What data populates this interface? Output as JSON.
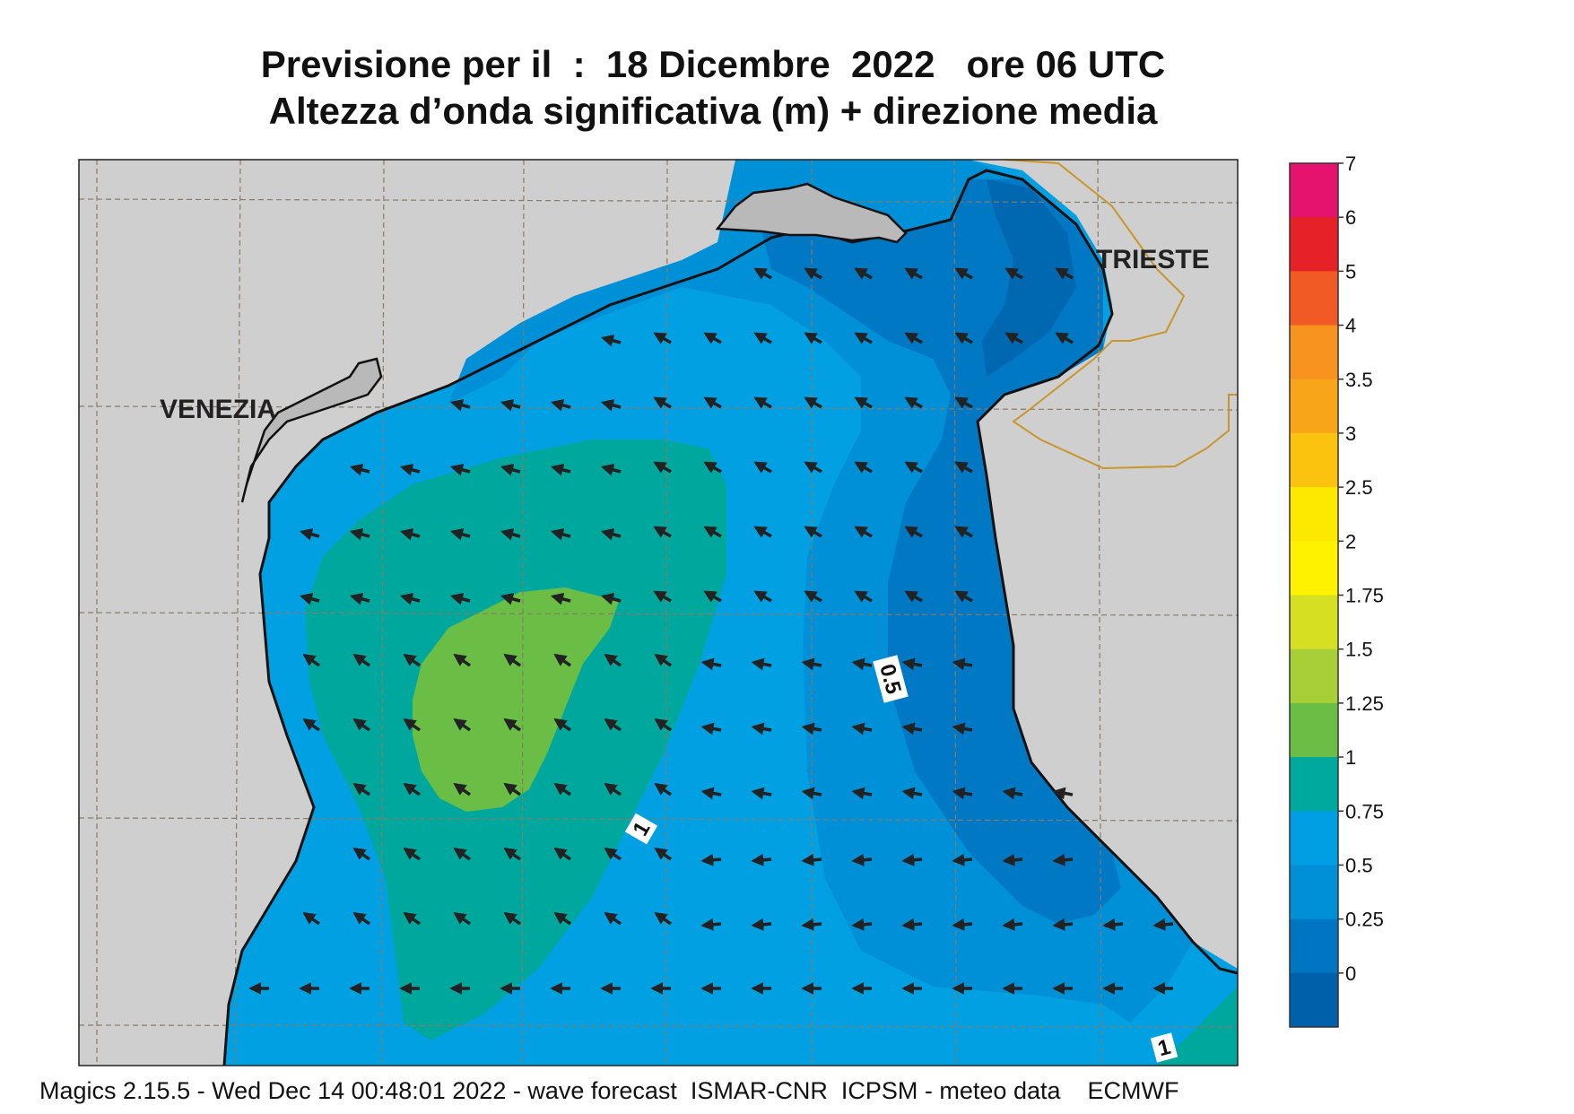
{
  "header": {
    "title_line1": "Previsione per il  :  18 Dicembre  2022   ore 06 UTC",
    "title_line2": "Altezza d’onda significativa (m) + direzione media"
  },
  "map": {
    "cities": [
      "VENEZIA",
      "TRIESTE"
    ],
    "contour_labels": [
      "0.5",
      "1",
      "1"
    ]
  },
  "legend": {
    "ticks": [
      "7",
      "6",
      "5",
      "4",
      "3.5",
      "3",
      "2.5",
      "2",
      "1.75",
      "1.5",
      "1.25",
      "1",
      "0.75",
      "0.5",
      "0.25",
      "0"
    ],
    "colors": [
      "#e6136e",
      "#e62128",
      "#f15a24",
      "#f7931e",
      "#f9a51a",
      "#fbc20e",
      "#fde800",
      "#fff200",
      "#d7df23",
      "#a8cf38",
      "#6abd45",
      "#00a99d",
      "#009fe3",
      "#0090d8",
      "#0075c1",
      "#0060aa"
    ]
  },
  "wave_colors": {
    "band_0_25": "#0067b1",
    "band_0_5": "#0078c4",
    "band_0_75": "#0092d9",
    "band_1": "#00a0e3",
    "band_1_25": "#00a79d",
    "band_1_5": "#6abd45",
    "land": "#cfcfcf"
  },
  "footer": {
    "text": "Magics 2.15.5 - Wed Dec 14 00:48:01 2022 - wave forecast  ISMAR-CNR  ICPSM - meteo data    ECMWF"
  }
}
